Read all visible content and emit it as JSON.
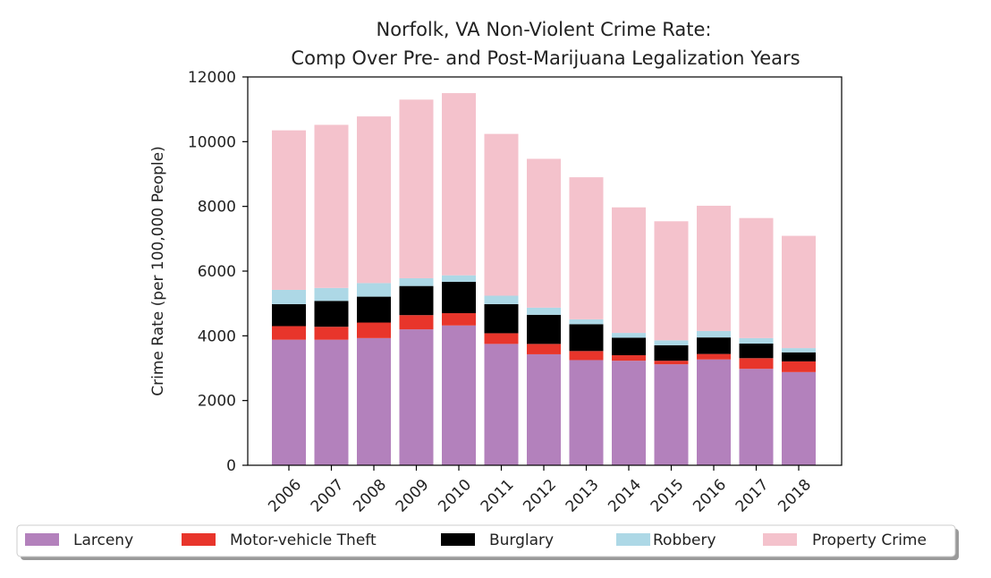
{
  "chart_data": {
    "type": "bar",
    "stacked": true,
    "title_line1": "Norfolk, VA Non-Violent Crime Rate:",
    "title_line2": "Comp Over Pre- and Post-Marijuana Legalization Years",
    "xlabel": "",
    "ylabel": "Crime Rate (per 100,000 People)",
    "ylim": [
      0,
      12000
    ],
    "yticks": [
      0,
      2000,
      4000,
      6000,
      8000,
      10000,
      12000
    ],
    "grid": false,
    "legend_position": "bottom",
    "categories": [
      "2006",
      "2007",
      "2008",
      "2009",
      "2010",
      "2011",
      "2012",
      "2013",
      "2014",
      "2015",
      "2016",
      "2017",
      "2018"
    ],
    "series": [
      {
        "name": "Larceny",
        "color": "#b381bc",
        "values": [
          3880,
          3880,
          3930,
          4200,
          4320,
          3750,
          3430,
          3250,
          3230,
          3120,
          3270,
          2980,
          2880
        ]
      },
      {
        "name": "Motor-vehicle Theft",
        "color": "#e8352b",
        "values": [
          420,
          400,
          480,
          440,
          380,
          330,
          320,
          280,
          170,
          110,
          170,
          330,
          330
        ]
      },
      {
        "name": "Burglary",
        "color": "#000000",
        "values": [
          680,
          800,
          800,
          900,
          970,
          900,
          900,
          830,
          540,
          480,
          510,
          450,
          280
        ]
      },
      {
        "name": "Robbery",
        "color": "#add8e6",
        "values": [
          440,
          400,
          420,
          240,
          200,
          260,
          220,
          150,
          150,
          150,
          200,
          170,
          130
        ]
      },
      {
        "name": "Property Crime",
        "color": "#f4c2cc",
        "values": [
          4930,
          5040,
          5150,
          5520,
          5630,
          5000,
          4600,
          4390,
          3880,
          3680,
          3870,
          3710,
          3470
        ]
      }
    ]
  }
}
